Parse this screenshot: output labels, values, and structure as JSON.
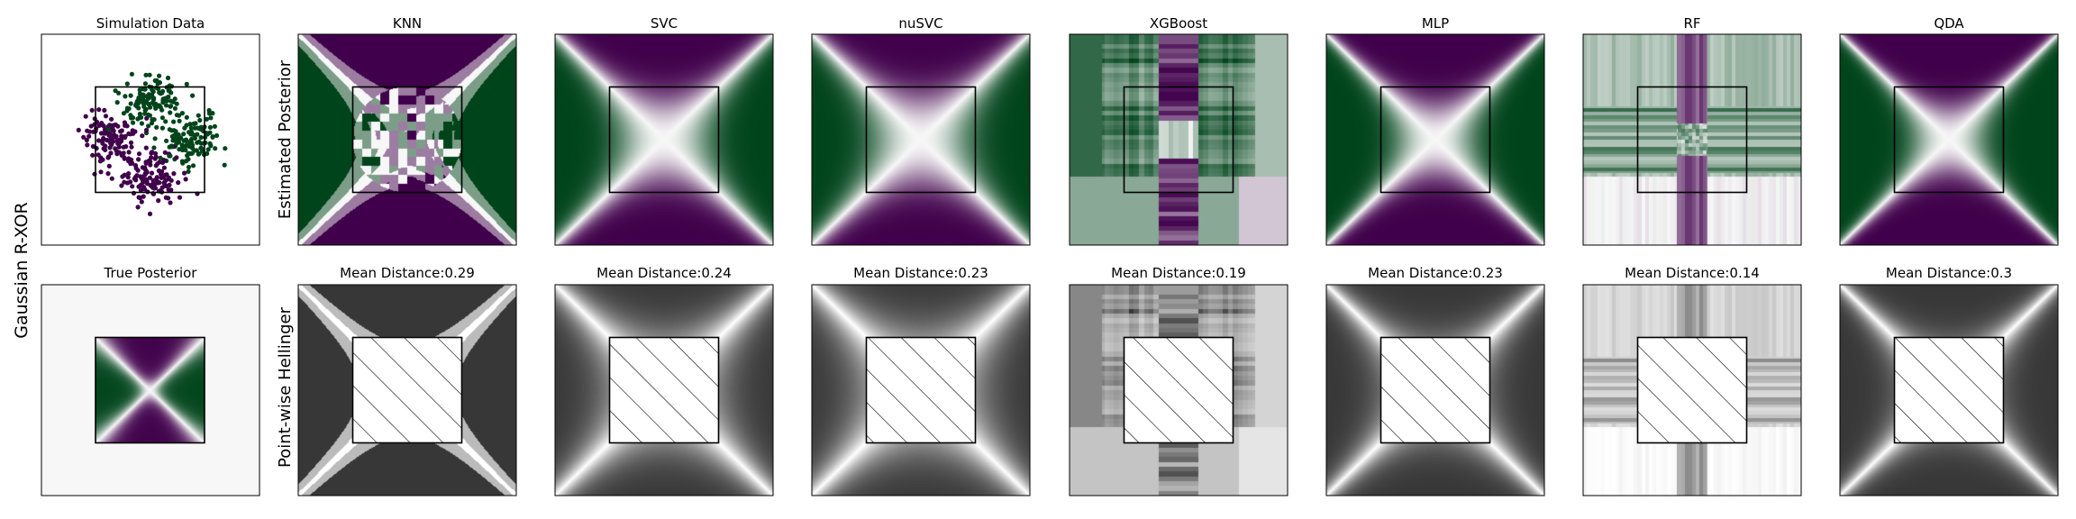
{
  "figure": {
    "row_label": "Gaussian R-XOR",
    "top_row_ylabel": "Estimated Posterior",
    "bottom_row_ylabel": "Point-wise Hellinger",
    "simulation_title": "Simulation Data",
    "true_posterior_title": "True Posterior",
    "mean_distance_prefix": "Mean Distance:"
  },
  "chart_data": {
    "type": "heatmap",
    "models": [
      "KNN",
      "SVC",
      "nuSVC",
      "XGBoost",
      "MLP",
      "RF",
      "QDA"
    ],
    "mean_distances": [
      "0.29",
      "0.24",
      "0.23",
      "0.19",
      "0.23",
      "0.14",
      "0.3"
    ],
    "posterior_colormap": [
      "#40004b",
      "#f7f7f7",
      "#00441b"
    ],
    "hellinger_colormap": [
      "#000000",
      "#ffffff"
    ],
    "class_colors": [
      "#40004b",
      "#00441b"
    ],
    "simulation_points": 500,
    "inner_box_fraction": 0.5
  }
}
